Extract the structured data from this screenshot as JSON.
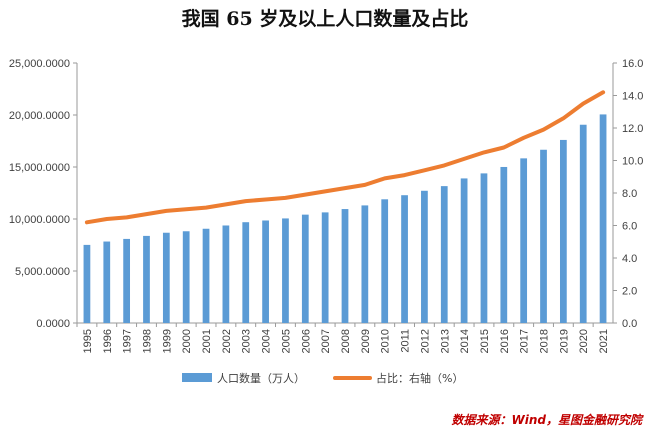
{
  "chart_data": {
    "type": "bar",
    "title": "我国 65 岁及以上人口数量及占比",
    "categories": [
      "1995",
      "1996",
      "1997",
      "1998",
      "1999",
      "2000",
      "2001",
      "2002",
      "2003",
      "2004",
      "2005",
      "2006",
      "2007",
      "2008",
      "2009",
      "2010",
      "2011",
      "2012",
      "2013",
      "2014",
      "2015",
      "2016",
      "2017",
      "2018",
      "2019",
      "2020",
      "2021"
    ],
    "series": [
      {
        "name": "人口数量（万人）",
        "type": "bar",
        "axis": "left",
        "color": "#5b9bd5",
        "values": [
          7510,
          7833,
          8085,
          8375,
          8679,
          8821,
          9062,
          9377,
          9692,
          9857,
          10055,
          10419,
          10636,
          10956,
          11307,
          11894,
          12288,
          12714,
          13161,
          13902,
          14386,
          15003,
          15831,
          16658,
          17603,
          19064,
          20056
        ]
      },
      {
        "name": "占比：右轴（%）",
        "type": "line",
        "axis": "right",
        "color": "#ed7d31",
        "values": [
          6.2,
          6.4,
          6.5,
          6.7,
          6.9,
          7.0,
          7.1,
          7.3,
          7.5,
          7.6,
          7.7,
          7.9,
          8.1,
          8.3,
          8.5,
          8.9,
          9.1,
          9.4,
          9.7,
          10.1,
          10.5,
          10.8,
          11.4,
          11.9,
          12.6,
          13.5,
          14.2
        ]
      }
    ],
    "y_left": {
      "ylim": [
        0,
        25000
      ],
      "ticks": [
        "0.0000",
        "5,000.0000",
        "10,000.0000",
        "15,000.0000",
        "20,000.0000",
        "25,000.0000"
      ]
    },
    "y_right": {
      "ylim": [
        0,
        16
      ],
      "ticks": [
        "0.0",
        "2.0",
        "4.0",
        "6.0",
        "8.0",
        "10.0",
        "12.0",
        "14.0",
        "16.0"
      ]
    },
    "grid": false,
    "legend": "bottom-center"
  },
  "source": "数据来源：Wind，星图金融研究院"
}
